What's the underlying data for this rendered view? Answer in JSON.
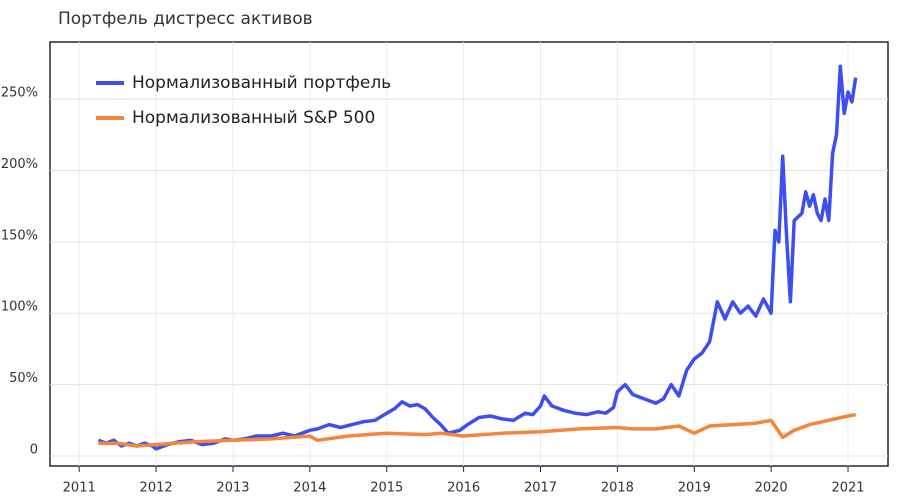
{
  "chart_data": {
    "type": "line",
    "title": "Портфель дистресс активов",
    "xlim": [
      2010.62,
      2021.52
    ],
    "xticks": [
      2011,
      2012,
      2013,
      2014,
      2015,
      2016,
      2017,
      2018,
      2019,
      2020,
      2021
    ],
    "ylim": [
      -7,
      290
    ],
    "yticks": [
      0,
      {
        "value": 50,
        "label": "50%"
      },
      {
        "value": 100,
        "label": "100%"
      },
      {
        "value": 150,
        "label": "150%"
      },
      {
        "value": 200,
        "label": "200%"
      },
      {
        "value": 250,
        "label": "250%"
      }
    ],
    "grid": true,
    "legend": "upper left",
    "series": [
      {
        "name": "Нормализованный портфель",
        "color": "#3d4ff0",
        "x": [
          2011.25,
          2011.35,
          2011.45,
          2011.55,
          2011.65,
          2011.75,
          2011.85,
          2011.95,
          2012.0,
          2012.15,
          2012.3,
          2012.45,
          2012.6,
          2012.75,
          2012.9,
          2013.0,
          2013.15,
          2013.3,
          2013.5,
          2013.65,
          2013.8,
          2014.0,
          2014.1,
          2014.25,
          2014.4,
          2014.55,
          2014.7,
          2014.85,
          2015.0,
          2015.1,
          2015.2,
          2015.3,
          2015.4,
          2015.5,
          2015.6,
          2015.7,
          2015.8,
          2015.95,
          2016.05,
          2016.2,
          2016.35,
          2016.5,
          2016.65,
          2016.8,
          2016.9,
          2017.0,
          2017.05,
          2017.15,
          2017.3,
          2017.45,
          2017.6,
          2017.75,
          2017.85,
          2017.95,
          2018.0,
          2018.1,
          2018.2,
          2018.35,
          2018.5,
          2018.6,
          2018.7,
          2018.8,
          2018.9,
          2019.0,
          2019.1,
          2019.2,
          2019.3,
          2019.4,
          2019.5,
          2019.6,
          2019.7,
          2019.8,
          2019.9,
          2020.0,
          2020.05,
          2020.1,
          2020.15,
          2020.2,
          2020.25,
          2020.3,
          2020.4,
          2020.45,
          2020.5,
          2020.55,
          2020.6,
          2020.65,
          2020.7,
          2020.75,
          2020.8,
          2020.85,
          2020.9,
          2020.95,
          2021.0,
          2021.05,
          2021.1
        ],
        "values": [
          11,
          9,
          11,
          7,
          9,
          7,
          9,
          7,
          5,
          8,
          10,
          11,
          8,
          9,
          12,
          11,
          12,
          14,
          14,
          16,
          14,
          18,
          19,
          22,
          20,
          22,
          24,
          25,
          30,
          33,
          38,
          35,
          36,
          33,
          27,
          22,
          16,
          18,
          22,
          27,
          28,
          26,
          25,
          30,
          29,
          35,
          42,
          35,
          32,
          30,
          29,
          31,
          30,
          34,
          45,
          50,
          43,
          40,
          37,
          40,
          50,
          42,
          60,
          68,
          72,
          80,
          108,
          96,
          108,
          100,
          105,
          98,
          110,
          100,
          158,
          150,
          210,
          155,
          108,
          165,
          170,
          185,
          175,
          183,
          170,
          165,
          180,
          165,
          212,
          225,
          273,
          240,
          255,
          248,
          265
        ]
      },
      {
        "name": "Нормализованный S&P 500",
        "color": "#f5853a",
        "x": [
          2011.25,
          2011.5,
          2011.75,
          2012.0,
          2012.5,
          2013.0,
          2013.5,
          2014.0,
          2014.1,
          2014.5,
          2015.0,
          2015.5,
          2015.7,
          2016.0,
          2016.5,
          2017.0,
          2017.5,
          2018.0,
          2018.2,
          2018.5,
          2018.8,
          2019.0,
          2019.2,
          2019.5,
          2019.8,
          2020.0,
          2020.15,
          2020.3,
          2020.5,
          2020.75,
          2021.0,
          2021.1
        ],
        "values": [
          9,
          9,
          7,
          8,
          10,
          11,
          12,
          14,
          11,
          14,
          16,
          15,
          16,
          14,
          16,
          17,
          19,
          20,
          19,
          19,
          21,
          16,
          21,
          22,
          23,
          25,
          13,
          18,
          22,
          25,
          28,
          29
        ]
      }
    ]
  }
}
